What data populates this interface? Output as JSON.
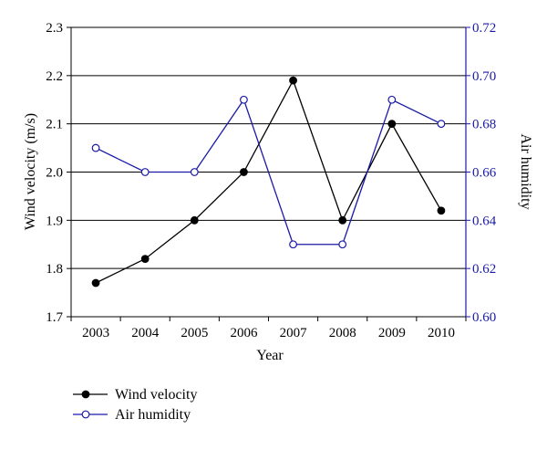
{
  "chart_data": {
    "type": "line",
    "xlabel": "Year",
    "ylabel_left": "Wind velocity (m/s)",
    "ylabel_right": "Air humidity",
    "categories": [
      "2003",
      "2004",
      "2005",
      "2006",
      "2007",
      "2008",
      "2009",
      "2010"
    ],
    "y_left": {
      "range": [
        1.7,
        2.3
      ],
      "ticks": [
        "1.7",
        "1.8",
        "1.9",
        "2.0",
        "2.1",
        "2.2",
        "2.3"
      ]
    },
    "y_right": {
      "range": [
        0.6,
        0.72
      ],
      "ticks": [
        "0.60",
        "0.62",
        "0.64",
        "0.66",
        "0.68",
        "0.70",
        "0.72"
      ]
    },
    "grid": "horizontal",
    "legend_position": "bottom-left",
    "series": [
      {
        "name": "Wind velocity",
        "axis": "left",
        "color": "#000000",
        "marker": "filled-circle",
        "values": [
          1.77,
          1.82,
          1.9,
          2.0,
          2.19,
          1.9,
          2.1,
          1.92
        ]
      },
      {
        "name": "Air humidity",
        "axis": "right",
        "color": "#1a1aa8",
        "marker": "open-circle",
        "values": [
          0.67,
          0.66,
          0.66,
          0.69,
          0.63,
          0.63,
          0.69,
          0.68
        ]
      }
    ]
  }
}
